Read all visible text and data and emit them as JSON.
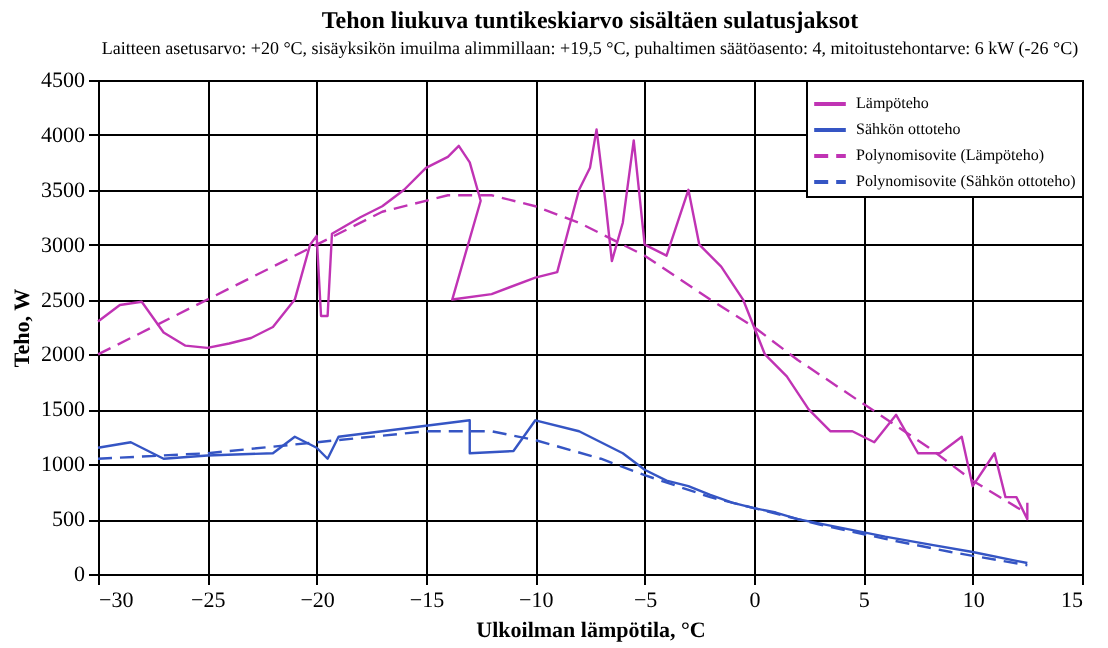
{
  "chart_data": {
    "type": "line",
    "title": "Tehon liukuva tuntikeskiarvo sisältäen sulatusjaksot",
    "subtitle": "Laitteen asetusarvo: +20 °C, sisäyksikön imuilma alimmillaan: +19,5 °C, puhaltimen säätöasento: 4, mitoitustehontarve: 6 kW (-26 °C)",
    "xlabel": "Ulkoilman lämpötila, °C",
    "ylabel": "Teho, W",
    "xlim": [
      -30,
      15
    ],
    "xticks": [
      -30,
      -25,
      -20,
      -15,
      -10,
      -5,
      0,
      5,
      10,
      15
    ],
    "ylim": [
      0,
      4500
    ],
    "yticks": [
      0,
      500,
      1000,
      1500,
      2000,
      2500,
      3000,
      3500,
      4000,
      4500
    ],
    "grid": true,
    "legend": "top right",
    "marker": "none",
    "series": [
      {
        "name": "Lämpöteho",
        "color": "#c033b4",
        "line_style": "solid",
        "x": [
          -30,
          -29,
          -28,
          -27,
          -26,
          -25,
          -24,
          -23,
          -22,
          -21,
          -20.3,
          -20,
          -19.8,
          -19.5,
          -19.3,
          -18,
          -17,
          -16,
          -15,
          -14,
          -13.5,
          -13,
          -12.5,
          -13.8,
          -12,
          -10,
          -9,
          -8,
          -7.5,
          -7.2,
          -6.8,
          -6.5,
          -6,
          -5.5,
          -5,
          -4,
          -3,
          -2.5,
          -1.5,
          -0.5,
          0.5,
          1.5,
          2.5,
          3.5,
          4.5,
          5.5,
          6.5,
          7.5,
          8.5,
          9.5,
          10,
          11,
          11.5,
          12,
          12.5,
          12.5
        ],
        "values": [
          2300,
          2450,
          2480,
          2200,
          2080,
          2060,
          2100,
          2150,
          2250,
          2500,
          3000,
          3080,
          2350,
          2350,
          3100,
          3250,
          3350,
          3500,
          3700,
          3800,
          3900,
          3750,
          3400,
          2500,
          2550,
          2700,
          2750,
          3500,
          3700,
          4050,
          3400,
          2850,
          3200,
          3950,
          3000,
          2900,
          3500,
          3000,
          2800,
          2500,
          2000,
          1800,
          1500,
          1300,
          1300,
          1200,
          1450,
          1100,
          1100,
          1250,
          800,
          1100,
          700,
          700,
          500,
          650
        ]
      },
      {
        "name": "Sähkön ottoteho",
        "color": "#3555c4",
        "line_style": "solid",
        "x": [
          -30,
          -28.5,
          -27,
          -25,
          -22,
          -21,
          -20,
          -19.5,
          -19,
          -17,
          -15,
          -13,
          -13,
          -11,
          -10,
          -8,
          -7,
          -6,
          -5,
          -4,
          -3,
          -2,
          -1,
          0,
          1,
          2,
          4,
          6,
          8,
          10,
          12,
          12.5
        ],
        "values": [
          1150,
          1200,
          1050,
          1080,
          1100,
          1250,
          1150,
          1050,
          1250,
          1300,
          1350,
          1400,
          1100,
          1120,
          1400,
          1300,
          1200,
          1100,
          950,
          850,
          800,
          720,
          650,
          600,
          560,
          500,
          420,
          340,
          270,
          200,
          120,
          100
        ]
      },
      {
        "name": "Polynomisovite (Lämpöteho)",
        "color": "#c033b4",
        "line_style": "dashed",
        "x": [
          -30,
          -25,
          -20,
          -17,
          -14,
          -12,
          -10,
          -8,
          -5,
          -2,
          0,
          2,
          5,
          8,
          10,
          12.5
        ],
        "values": [
          2000,
          2500,
          3000,
          3300,
          3450,
          3450,
          3350,
          3200,
          2900,
          2500,
          2250,
          1950,
          1550,
          1150,
          850,
          550
        ]
      },
      {
        "name": "Polynomisovite (Sähkön ottoteho)",
        "color": "#3555c4",
        "line_style": "dashed",
        "x": [
          -30,
          -25,
          -20,
          -15,
          -12,
          -10,
          -7,
          -5,
          -2,
          0,
          3,
          6,
          9,
          12.5
        ],
        "values": [
          1050,
          1100,
          1200,
          1300,
          1300,
          1220,
          1050,
          900,
          700,
          600,
          450,
          320,
          200,
          80
        ]
      }
    ]
  }
}
